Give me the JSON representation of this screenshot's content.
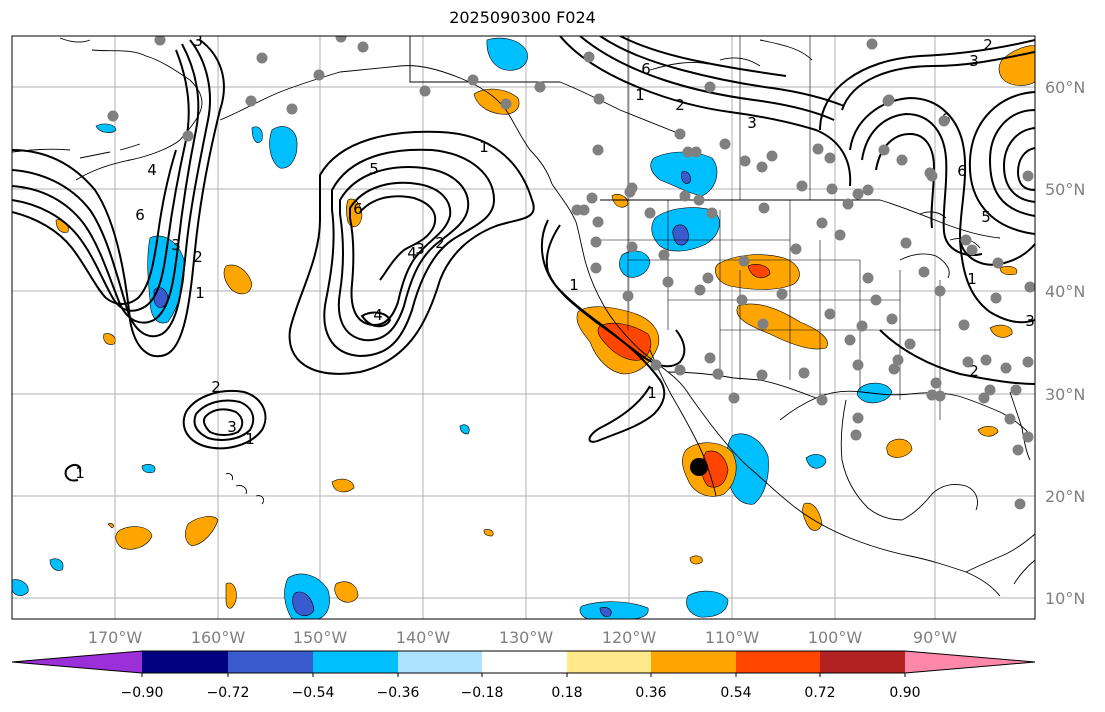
{
  "title": "2025090300 F024",
  "lon_labels": [
    "170°W",
    "160°W",
    "150°W",
    "140°W",
    "130°W",
    "120°W",
    "110°W",
    "100°W",
    "90°W"
  ],
  "lat_labels": [
    "60°N",
    "50°N",
    "40°N",
    "30°N",
    "20°N",
    "10°N"
  ],
  "colorbar": {
    "tick_labels": [
      "−0.90",
      "−0.72",
      "−0.54",
      "−0.36",
      "−0.18",
      "0.18",
      "0.36",
      "0.54",
      "0.72",
      "0.90"
    ],
    "colors": [
      "#9b30d9",
      "#000080",
      "#3a5bd0",
      "#00bfff",
      "#aee3ff",
      "#ffffff",
      "#ffe98a",
      "#ffa500",
      "#ff4500",
      "#b22222",
      "#ff88aa"
    ]
  },
  "contour_labels": [
    "1",
    "2",
    "3",
    "4",
    "5",
    "6"
  ],
  "colors": {
    "contour": "#000000",
    "station": "#808080",
    "grid": "#b0b0b0",
    "coast": "#000000",
    "marker": "#000000"
  }
}
